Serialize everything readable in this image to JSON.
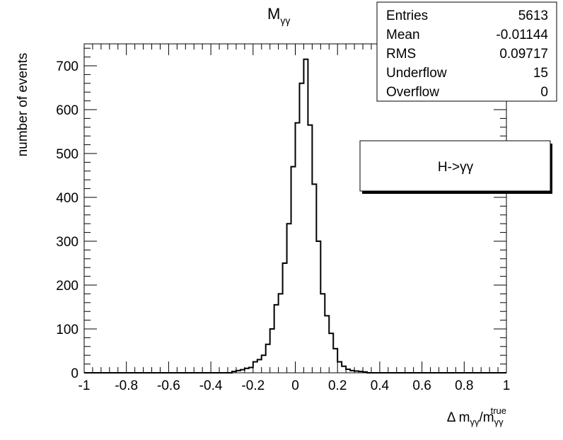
{
  "chart_data": {
    "type": "bar",
    "title_main": "M",
    "title_sub": "γγ",
    "xlabel_prefix": "Δ m",
    "xlabel_sub1": "γγ",
    "xlabel_mid": "/m",
    "xlabel_sub2": "γγ",
    "xlabel_sup": "true",
    "ylabel": "number of events",
    "xlim": [
      -1,
      1
    ],
    "ylim": [
      0,
      750
    ],
    "x_ticks": [
      "-1",
      "-0.8",
      "-0.6",
      "-0.4",
      "-0.2",
      "0",
      "0.2",
      "0.4",
      "0.6",
      "0.8",
      "1"
    ],
    "y_ticks": [
      "0",
      "100",
      "200",
      "300",
      "400",
      "500",
      "600",
      "700"
    ],
    "bins": {
      "x_edges_start": -1.0,
      "bin_width": 0.02,
      "values": [
        0,
        0,
        0,
        0,
        0,
        0,
        0,
        0,
        0,
        0,
        0,
        0,
        0,
        0,
        0,
        0,
        0,
        0,
        0,
        0,
        0,
        0,
        0,
        0,
        0,
        0,
        0,
        0,
        0,
        0,
        0,
        0,
        0,
        0,
        0,
        3,
        5,
        7,
        10,
        12,
        25,
        30,
        40,
        65,
        100,
        155,
        180,
        250,
        340,
        470,
        570,
        660,
        715,
        565,
        430,
        300,
        180,
        130,
        90,
        55,
        25,
        15,
        8,
        5,
        4,
        3,
        2,
        0,
        0,
        0,
        0,
        0,
        0,
        0,
        0,
        0,
        0,
        0,
        0,
        0,
        0,
        0,
        0,
        0,
        0,
        0,
        0,
        0,
        0,
        0,
        0,
        0,
        0,
        0,
        0,
        0,
        0,
        0,
        0,
        0
      ]
    },
    "stats": {
      "rows": [
        {
          "label": "Entries",
          "value": "5613"
        },
        {
          "label": "Mean",
          "value": "-0.01144"
        },
        {
          "label": "RMS",
          "value": "0.09717"
        },
        {
          "label": "Underflow",
          "value": "15"
        },
        {
          "label": "Overflow",
          "value": "0"
        }
      ]
    },
    "legend": {
      "label": "H->γγ",
      "placement": "right"
    },
    "grid": false
  }
}
